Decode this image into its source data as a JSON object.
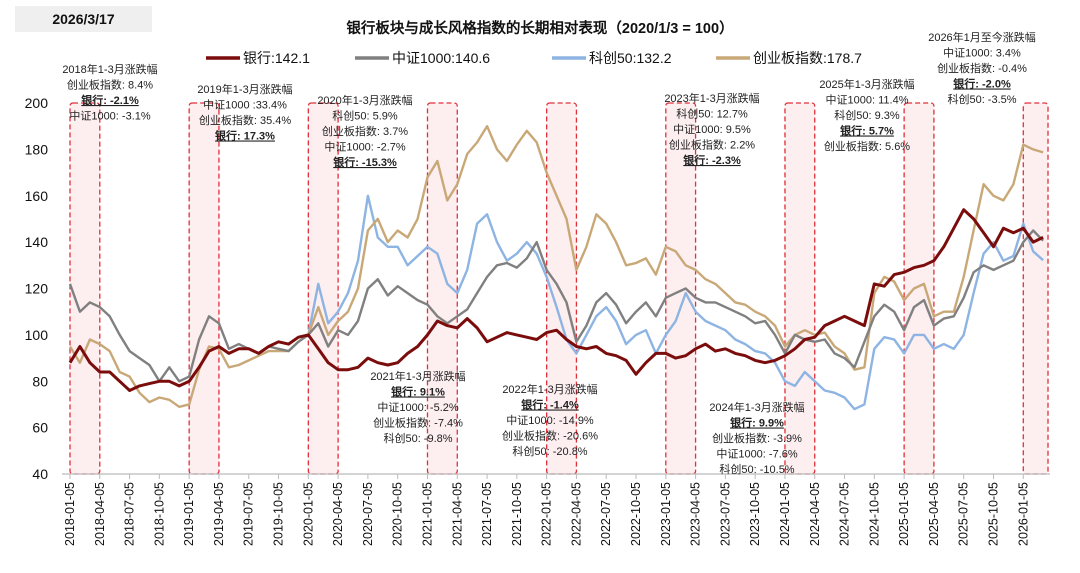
{
  "date_label": "2026/3/17",
  "chart_data": {
    "type": "line",
    "title": "银行板块与成长风格指数的长期相对表现（2020/1/3 = 100）",
    "xlabel": "",
    "ylabel": "",
    "ylim": [
      40,
      200
    ],
    "y_ticks": [
      "40",
      "60",
      "80",
      "100",
      "120",
      "140",
      "160",
      "180",
      "200"
    ],
    "x_tick_labels": [
      "2018-01-05",
      "2018-04-05",
      "2018-07-05",
      "2018-10-05",
      "2019-01-05",
      "2019-04-05",
      "2019-07-05",
      "2019-10-05",
      "2020-01-05",
      "2020-04-05",
      "2020-07-05",
      "2020-10-05",
      "2021-01-05",
      "2021-04-05",
      "2021-07-05",
      "2021-10-05",
      "2022-01-05",
      "2022-04-05",
      "2022-07-05",
      "2022-10-05",
      "2023-01-05",
      "2023-04-05",
      "2023-07-05",
      "2023-10-05",
      "2024-01-05",
      "2024-04-05",
      "2024-07-05",
      "2024-10-05",
      "2025-01-05",
      "2025-04-05",
      "2025-07-05",
      "2025-10-05",
      "2026-01-05"
    ],
    "x_range": [
      "2018-01-05",
      "2026-03-17"
    ],
    "grid": false,
    "legend_position": "top",
    "x_frequency": "monthly, 2018-01 to 2026-03",
    "series": [
      {
        "name": "银行",
        "legend_label": "银行:142.1",
        "color": "#7B0C0C",
        "values": [
          88,
          95,
          88,
          84,
          84,
          80,
          76,
          78,
          79,
          80,
          80,
          78,
          80,
          86,
          93,
          95,
          92,
          94,
          94,
          92,
          95,
          97,
          96,
          99,
          100,
          94,
          88,
          85,
          85,
          86,
          90,
          88,
          87,
          88,
          92,
          95,
          100,
          106,
          104,
          103,
          107,
          103,
          97,
          99,
          101,
          100,
          99,
          98,
          101,
          102,
          98,
          95,
          94,
          95,
          92,
          91,
          89,
          83,
          88,
          92,
          92,
          90,
          91,
          94,
          96,
          93,
          94,
          92,
          91,
          89,
          88,
          89,
          91,
          94,
          98,
          99,
          104,
          106,
          108,
          106,
          104,
          122,
          121,
          126,
          127,
          129,
          130,
          132,
          138,
          146,
          154,
          150,
          144,
          138,
          146,
          144,
          146,
          140,
          142.1
        ]
      },
      {
        "name": "中证1000",
        "legend_label": "中证1000:140.6",
        "color": "#808080",
        "values": [
          122,
          110,
          114,
          112,
          108,
          100,
          93,
          90,
          87,
          80,
          86,
          80,
          82,
          98,
          108,
          105,
          94,
          96,
          94,
          92,
          95,
          94,
          93,
          97,
          100,
          105,
          95,
          102,
          100,
          106,
          120,
          124,
          117,
          121,
          118,
          115,
          113,
          108,
          105,
          108,
          111,
          118,
          125,
          130,
          131,
          129,
          133,
          140,
          128,
          122,
          114,
          97,
          104,
          114,
          118,
          113,
          105,
          110,
          114,
          108,
          116,
          118,
          120,
          116,
          114,
          114,
          112,
          110,
          108,
          105,
          106,
          100,
          92,
          100,
          98,
          97,
          98,
          92,
          90,
          86,
          97,
          108,
          113,
          110,
          102,
          112,
          115,
          104,
          107,
          108,
          116,
          127,
          130,
          128,
          130,
          132,
          140,
          145,
          140.6
        ]
      },
      {
        "name": "科创50",
        "legend_label": "科创50:132.2",
        "color": "#8DB4E2",
        "values": [
          null,
          null,
          null,
          null,
          null,
          null,
          null,
          null,
          null,
          null,
          null,
          null,
          null,
          null,
          null,
          null,
          null,
          null,
          null,
          null,
          null,
          null,
          null,
          null,
          100,
          122,
          105,
          110,
          118,
          132,
          160,
          142,
          138,
          138,
          130,
          134,
          138,
          135,
          122,
          118,
          128,
          148,
          152,
          140,
          132,
          135,
          140,
          135,
          125,
          112,
          98,
          92,
          100,
          108,
          112,
          106,
          96,
          100,
          102,
          92,
          100,
          106,
          118,
          110,
          106,
          104,
          102,
          98,
          96,
          93,
          92,
          88,
          80,
          78,
          84,
          80,
          76,
          75,
          73,
          68,
          70,
          94,
          99,
          98,
          92,
          100,
          100,
          94,
          96,
          94,
          100,
          118,
          135,
          140,
          132,
          134,
          148,
          136,
          132.2
        ]
      },
      {
        "name": "创业板指数",
        "legend_label": "创业板指数:178.7",
        "color": "#C9A878",
        "values": [
          95,
          88,
          98,
          96,
          93,
          84,
          82,
          75,
          71,
          73,
          72,
          69,
          70,
          85,
          95,
          94,
          86,
          87,
          89,
          91,
          93,
          93,
          93,
          97,
          100,
          112,
          100,
          106,
          110,
          120,
          145,
          150,
          140,
          145,
          142,
          150,
          168,
          175,
          158,
          165,
          178,
          183,
          190,
          180,
          175,
          182,
          188,
          183,
          170,
          160,
          150,
          128,
          138,
          152,
          148,
          140,
          130,
          131,
          133,
          126,
          138,
          136,
          130,
          128,
          124,
          122,
          118,
          114,
          113,
          110,
          108,
          104,
          95,
          100,
          102,
          100,
          101,
          95,
          92,
          85,
          86,
          118,
          125,
          123,
          115,
          120,
          122,
          108,
          110,
          110,
          125,
          145,
          165,
          160,
          158,
          165,
          182,
          180,
          178.7
        ]
      }
    ],
    "highlight_periods": [
      "2018年1-3月",
      "2019年1-3月",
      "2020年1-3月",
      "2021年1-3月",
      "2022年1-3月",
      "2023年1-3月",
      "2024年1-3月",
      "2025年1-3月",
      "2026年1月至今"
    ],
    "annotations": [
      {
        "lines": [
          {
            "t": "2018年1-3月涨跌幅"
          },
          {
            "t": "创业板指数: 8.4%"
          },
          {
            "t": "银行: -2.1%",
            "em": true
          },
          {
            "t": "中证1000: -3.1%"
          }
        ]
      },
      {
        "lines": [
          {
            "t": "2019年1-3月涨跌幅"
          },
          {
            "t": "中证1000 :33.4%"
          },
          {
            "t": "创业板指数: 35.4%"
          },
          {
            "t": "银行: 17.3%",
            "em": true
          }
        ]
      },
      {
        "lines": [
          {
            "t": "2020年1-3月涨跌幅"
          },
          {
            "t": "科创50: 5.9%"
          },
          {
            "t": "创业板指数: 3.7%"
          },
          {
            "t": "中证1000: -2.7%"
          },
          {
            "t": "银行: -15.3%",
            "em": true
          }
        ]
      },
      {
        "lines": [
          {
            "t": "2021年1-3月涨跌幅"
          },
          {
            "t": "银行: 9.1%",
            "em": true
          },
          {
            "t": "中证1000: -5.2%"
          },
          {
            "t": "创业板指数: -7.4%"
          },
          {
            "t": "科创50: -9.8%"
          }
        ]
      },
      {
        "lines": [
          {
            "t": "2022年1-3月涨跌幅"
          },
          {
            "t": "银行: -1.4%",
            "em": true
          },
          {
            "t": "中证1000: -14.9%"
          },
          {
            "t": "创业板指数: -20.6%"
          },
          {
            "t": "科创50: -20.8%"
          }
        ]
      },
      {
        "lines": [
          {
            "t": "2023年1-3月涨跌幅"
          },
          {
            "t": "科创50: 12.7%"
          },
          {
            "t": "中证1000: 9.5%"
          },
          {
            "t": "创业板指数: 2.2%"
          },
          {
            "t": "银行: -2.3%",
            "em": true
          }
        ]
      },
      {
        "lines": [
          {
            "t": "2024年1-3月涨跌幅"
          },
          {
            "t": "银行: 9.9%",
            "em": true
          },
          {
            "t": "创业板指数: -3.9%"
          },
          {
            "t": "中证1000: -7.6%"
          },
          {
            "t": "科创50: -10.5%"
          }
        ]
      },
      {
        "lines": [
          {
            "t": "2025年1-3月涨跌幅"
          },
          {
            "t": "中证1000: 11.4%"
          },
          {
            "t": "科创50: 9.3%"
          },
          {
            "t": "银行: 5.7%",
            "em": true
          },
          {
            "t": "创业板指数: 5.6%"
          }
        ]
      },
      {
        "lines": [
          {
            "t": "2026年1月至今涨跌幅"
          },
          {
            "t": "中证1000: 3.4%"
          },
          {
            "t": "创业板指数: -0.4%"
          },
          {
            "t": "银行: -2.0%",
            "em": true
          },
          {
            "t": "科创50: -3.5%"
          }
        ]
      }
    ]
  }
}
